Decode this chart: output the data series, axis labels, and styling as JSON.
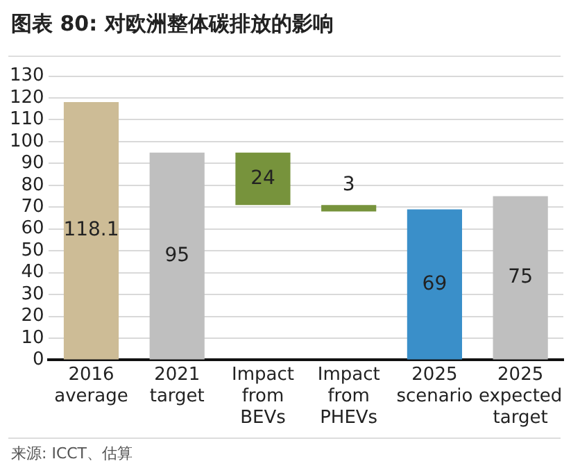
{
  "chart_data": {
    "type": "bar",
    "title": "图表 80: 对欧洲整体碳排放的影响",
    "categories": [
      "2016 average",
      "2021 target",
      "Impact from BEVs",
      "Impact from PHEVs",
      "2025 scenario",
      "2025 expected target"
    ],
    "values": [
      118.1,
      95,
      24,
      3,
      69,
      75
    ],
    "base": [
      0,
      0,
      71,
      68,
      0,
      0
    ],
    "colors": [
      "#cdbc96",
      "#bfbfbf",
      "#77933c",
      "#77933c",
      "#3a8fc9",
      "#bfbfbf"
    ],
    "ylim": [
      0,
      130
    ],
    "yticks": [
      0,
      10,
      20,
      30,
      40,
      50,
      60,
      70,
      80,
      90,
      100,
      110,
      120,
      130
    ],
    "grid": "y",
    "data_labels": true,
    "annotations": [
      "来源: ICCT、估算"
    ]
  }
}
